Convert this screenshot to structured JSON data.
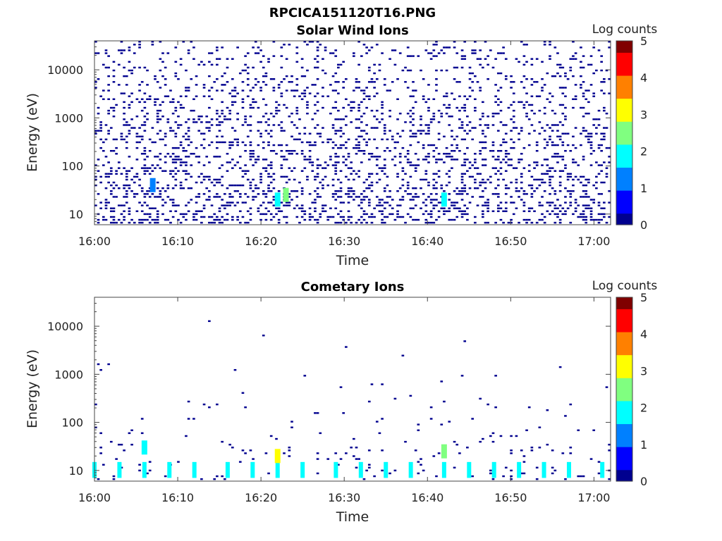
{
  "figure_title": "RPCICA151120T16.PNG",
  "colormap": [
    "#00008f",
    "#0000ff",
    "#0080ff",
    "#00ffff",
    "#80ff80",
    "#ffff00",
    "#ff8000",
    "#ff0000",
    "#800000"
  ],
  "chart_data": [
    {
      "type": "heatmap",
      "title": "Solar Wind Ions",
      "xlabel": "Time",
      "ylabel": "Energy (eV)",
      "x_ticks": [
        "16:00",
        "16:10",
        "16:20",
        "16:30",
        "16:40",
        "16:50",
        "17:00"
      ],
      "y_ticks": [
        "10",
        "100",
        "1000",
        "10000"
      ],
      "y_scale": "log",
      "xlim": [
        "16:00",
        "17:02"
      ],
      "ylim": [
        6,
        40000
      ],
      "colorbar": {
        "label": "Log counts",
        "range": [
          0,
          5
        ],
        "ticks": [
          "0",
          "1",
          "2",
          "3",
          "4",
          "5"
        ]
      },
      "description_values": {
        "background_level": 0.1,
        "hotspots": [
          {
            "time": "16:22",
            "energy_eV": 20,
            "log_counts": 1.6
          },
          {
            "time": "16:23",
            "energy_eV": 25,
            "log_counts": 2.2
          },
          {
            "time": "16:42",
            "energy_eV": 20,
            "log_counts": 1.8
          },
          {
            "time": "16:07",
            "energy_eV": 40,
            "log_counts": 1.2
          }
        ]
      }
    },
    {
      "type": "heatmap",
      "title": "Cometary Ions",
      "xlabel": "Time",
      "ylabel": "Energy (eV)",
      "x_ticks": [
        "16:00",
        "16:10",
        "16:20",
        "16:30",
        "16:40",
        "16:50",
        "17:00"
      ],
      "y_ticks": [
        "10",
        "100",
        "1000",
        "10000"
      ],
      "y_scale": "log",
      "xlim": [
        "16:00",
        "17:02"
      ],
      "ylim": [
        6,
        40000
      ],
      "colorbar": {
        "label": "Log counts",
        "range": [
          0,
          5
        ],
        "ticks": [
          "0",
          "1",
          "2",
          "3",
          "4",
          "5"
        ]
      },
      "description_values": {
        "periodic_bands": {
          "times": [
            "16:00",
            "16:03",
            "16:06",
            "16:09",
            "16:12",
            "16:16",
            "16:19",
            "16:22",
            "16:25",
            "16:29",
            "16:32",
            "16:35",
            "16:38",
            "16:42",
            "16:45",
            "16:48",
            "16:51",
            "16:54",
            "16:57",
            "17:01"
          ],
          "energy_eV": [
            7,
            15
          ],
          "log_counts": 1.8
        },
        "hotspots": [
          {
            "time": "16:22",
            "energy_eV": 20,
            "log_counts": 3.0
          },
          {
            "time": "16:42",
            "energy_eV": 25,
            "log_counts": 2.8
          },
          {
            "time": "16:06",
            "energy_eV": 30,
            "log_counts": 1.6
          }
        ]
      }
    }
  ]
}
